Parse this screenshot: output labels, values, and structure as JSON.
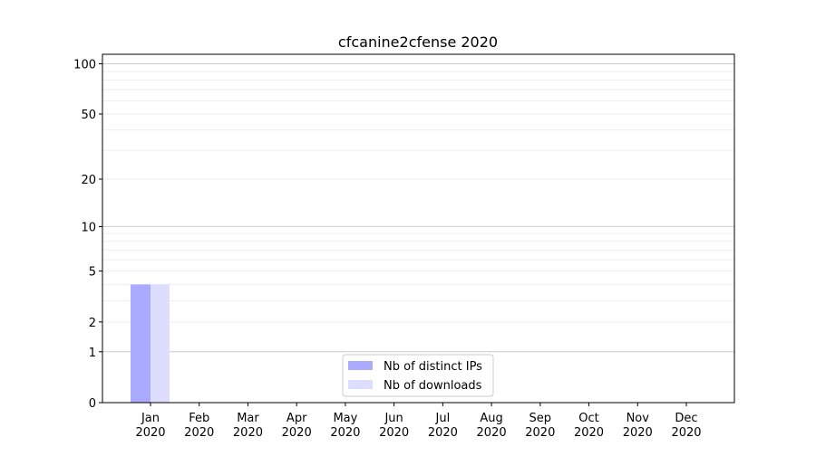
{
  "chart_data": {
    "type": "bar",
    "title": "cfcanine2cfense 2020",
    "xlabel": "",
    "ylabel": "",
    "y_scale": "log(1+y)",
    "ylim": [
      0,
      114
    ],
    "y_ticks": [
      0,
      1,
      2,
      5,
      10,
      20,
      50,
      100
    ],
    "y_minor_ticks": [
      3,
      4,
      6,
      7,
      8,
      9,
      30,
      40,
      60,
      70,
      80,
      90
    ],
    "grid": true,
    "legend_position": "bottom-center",
    "categories": [
      [
        "Jan",
        "2020"
      ],
      [
        "Feb",
        "2020"
      ],
      [
        "Mar",
        "2020"
      ],
      [
        "Apr",
        "2020"
      ],
      [
        "May",
        "2020"
      ],
      [
        "Jun",
        "2020"
      ],
      [
        "Jul",
        "2020"
      ],
      [
        "Aug",
        "2020"
      ],
      [
        "Sep",
        "2020"
      ],
      [
        "Oct",
        "2020"
      ],
      [
        "Nov",
        "2020"
      ],
      [
        "Dec",
        "2020"
      ]
    ],
    "series": [
      {
        "name": "Nb of distinct IPs",
        "color": "#aaaaff",
        "values": [
          4,
          0,
          0,
          0,
          0,
          0,
          0,
          0,
          0,
          0,
          0,
          0
        ]
      },
      {
        "name": "Nb of downloads",
        "color": "#ddddff",
        "values": [
          4,
          0,
          0,
          0,
          0,
          0,
          0,
          0,
          0,
          0,
          0,
          0
        ]
      }
    ]
  }
}
